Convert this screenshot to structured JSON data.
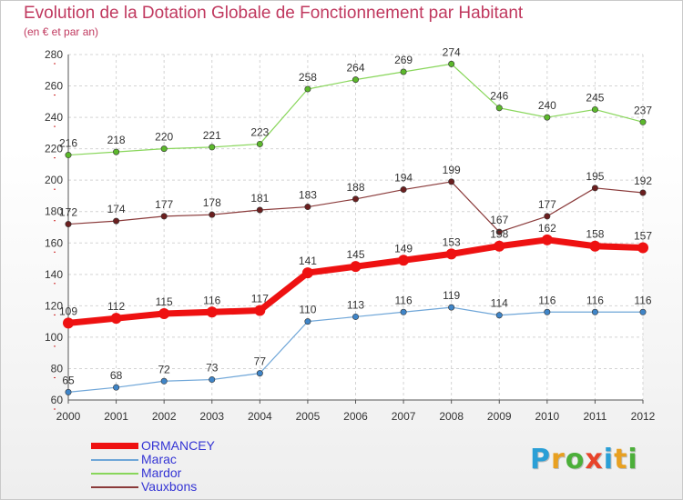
{
  "title": "Evolution de la Dotation Globale de Fonctionnement par Habitant",
  "subtitle": "(en € et par an)",
  "logo": {
    "text": "Proxiti",
    "letters": [
      "P",
      "r",
      "o",
      "x",
      "i",
      "t",
      "i"
    ],
    "colors": [
      "#2a9fd6",
      "#e8a020",
      "#4caf3a",
      "#e8442a",
      "#2a9fd6",
      "#e8a020",
      "#4caf3a"
    ]
  },
  "chart_data": {
    "type": "line",
    "title": "Evolution de la Dotation Globale de Fonctionnement par Habitant",
    "subtitle": "(en € et par an)",
    "x": [
      "2000",
      "2001",
      "2002",
      "2003",
      "2004",
      "2005",
      "2006",
      "2007",
      "2008",
      "2009",
      "2010",
      "2011",
      "2012"
    ],
    "ylim": [
      60,
      280
    ],
    "yticks": [
      60,
      80,
      100,
      120,
      140,
      160,
      180,
      200,
      220,
      240,
      260,
      280
    ],
    "grid": true,
    "legend_position": "bottom-left",
    "series": [
      {
        "name": "Mardor",
        "color": "#88d65a",
        "marker": "#5cb82c",
        "width": 1.2,
        "values": [
          216,
          218,
          220,
          221,
          223,
          258,
          264,
          269,
          274,
          246,
          240,
          245,
          237
        ]
      },
      {
        "name": "Vauxbons",
        "color": "#8a3a3a",
        "marker": "#6b1f1f",
        "width": 1.2,
        "values": [
          172,
          174,
          177,
          178,
          181,
          183,
          188,
          194,
          199,
          167,
          177,
          195,
          192
        ]
      },
      {
        "name": "Marac",
        "color": "#6fa6d8",
        "marker": "#3f85c8",
        "width": 1.2,
        "values": [
          65,
          68,
          72,
          73,
          77,
          110,
          113,
          116,
          119,
          114,
          116,
          116,
          116
        ]
      },
      {
        "name": "ORMANCEY",
        "color": "#ee1111",
        "marker": "#ee1111",
        "width": 7,
        "values": [
          109,
          112,
          115,
          116,
          117,
          141,
          145,
          149,
          153,
          158,
          162,
          158,
          157
        ]
      }
    ],
    "legend": [
      "ORMANCEY",
      "Marac",
      "Mardor",
      "Vauxbons"
    ]
  }
}
